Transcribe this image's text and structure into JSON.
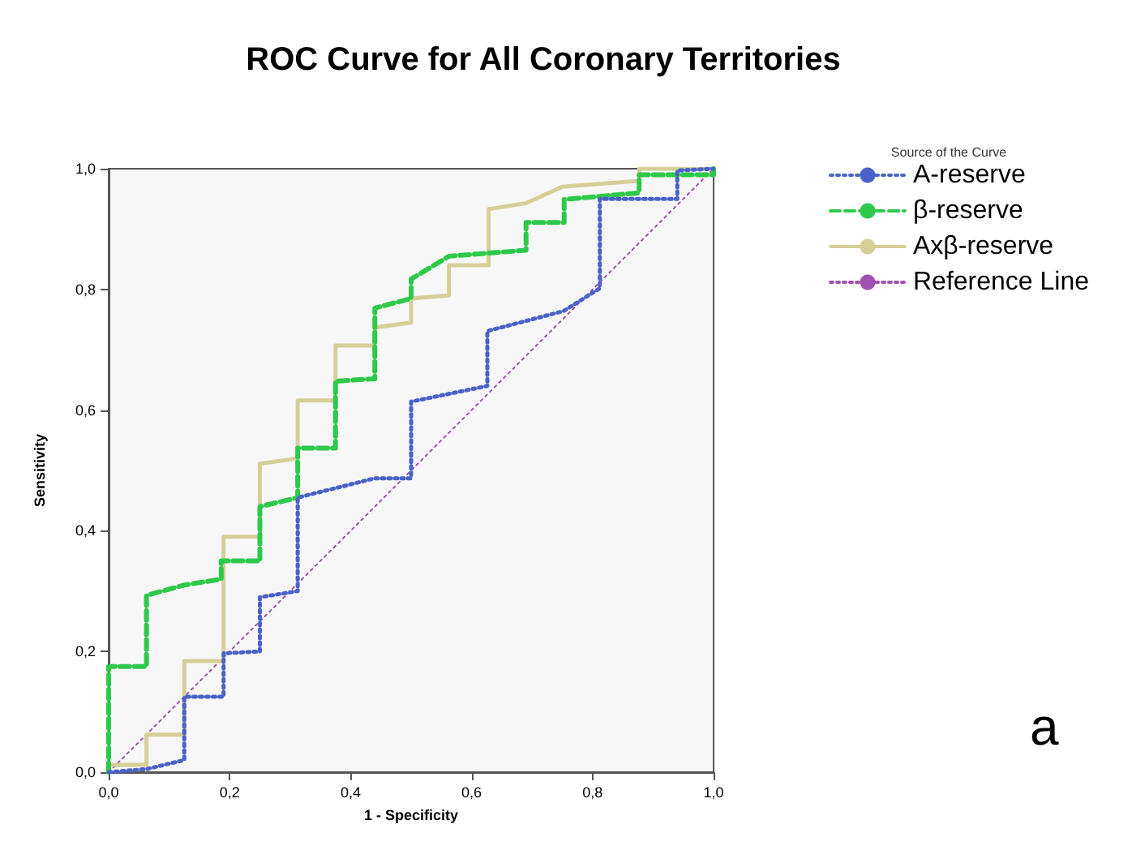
{
  "chart_data": {
    "type": "line",
    "title": "ROC Curve for All Coronary Territories",
    "xlabel": "1 - Specificity",
    "ylabel": "Sensitivity",
    "legend_title": "Source of the Curve",
    "legend": "right",
    "marker": "none",
    "grid": false,
    "xlim": [
      0,
      1
    ],
    "ylim": [
      0,
      1
    ],
    "xticks": [
      {
        "value": 0,
        "label": "0,0"
      },
      {
        "value": 0.2,
        "label": "0,2"
      },
      {
        "value": 0.4,
        "label": "0,4"
      },
      {
        "value": 0.6,
        "label": "0,6"
      },
      {
        "value": 0.8,
        "label": "0,8"
      },
      {
        "value": 1,
        "label": "1,0"
      }
    ],
    "yticks": [
      {
        "value": 0,
        "label": "0,0"
      },
      {
        "value": 0.2,
        "label": "0,2"
      },
      {
        "value": 0.4,
        "label": "0,4"
      },
      {
        "value": 0.6,
        "label": "0,6"
      },
      {
        "value": 0.8,
        "label": "0,8"
      },
      {
        "value": 1,
        "label": "1,0"
      }
    ],
    "series": [
      {
        "name": "A-reserve",
        "color": "#4a62c8",
        "line_style": "dotted",
        "x": [
          0,
          0.0625,
          0.125,
          0.125,
          0.19,
          0.19,
          0.25,
          0.25,
          0.3125,
          0.3125,
          0.44,
          0.5,
          0.5,
          0.626,
          0.626,
          0.752,
          0.812,
          0.812,
          0.94,
          0.94,
          1
        ],
        "values": [
          0,
          0.005,
          0.02,
          0.125,
          0.125,
          0.197,
          0.2,
          0.29,
          0.3,
          0.455,
          0.487,
          0.487,
          0.614,
          0.64,
          0.731,
          0.764,
          0.802,
          0.95,
          0.95,
          0.997,
          1
        ]
      },
      {
        "name": "β-reserve",
        "color": "#2ec94a",
        "line_style": "dashed",
        "x": [
          0,
          0,
          0.0625,
          0.0625,
          0.125,
          0.186,
          0.186,
          0.25,
          0.25,
          0.3125,
          0.3125,
          0.375,
          0.375,
          0.44,
          0.44,
          0.5,
          0.5,
          0.5625,
          0.69,
          0.69,
          0.753,
          0.753,
          0.877,
          0.877,
          1,
          1
        ],
        "values": [
          0,
          0.175,
          0.175,
          0.293,
          0.31,
          0.32,
          0.35,
          0.35,
          0.44,
          0.455,
          0.537,
          0.537,
          0.648,
          0.652,
          0.769,
          0.785,
          0.817,
          0.855,
          0.865,
          0.911,
          0.911,
          0.949,
          0.96,
          0.99,
          0.99,
          1
        ]
      },
      {
        "name": "Axβ-reserve",
        "color": "#d6cf96",
        "line_style": "solid",
        "x": [
          0,
          0.0625,
          0.0625,
          0.125,
          0.125,
          0.19,
          0.19,
          0.25,
          0.25,
          0.3125,
          0.3125,
          0.375,
          0.375,
          0.44,
          0.44,
          0.5,
          0.5,
          0.5625,
          0.5625,
          0.628,
          0.628,
          0.69,
          0.75,
          0.877,
          0.877,
          1
        ],
        "values": [
          0.012,
          0.012,
          0.062,
          0.062,
          0.184,
          0.184,
          0.39,
          0.39,
          0.511,
          0.52,
          0.616,
          0.616,
          0.707,
          0.707,
          0.737,
          0.745,
          0.785,
          0.79,
          0.84,
          0.84,
          0.933,
          0.943,
          0.97,
          0.98,
          1,
          1
        ]
      },
      {
        "name": "Reference Line",
        "color": "#a050b0",
        "line_style": "dotted",
        "x": [
          0,
          1
        ],
        "values": [
          0,
          1
        ]
      }
    ],
    "annotations": [
      "a"
    ]
  }
}
